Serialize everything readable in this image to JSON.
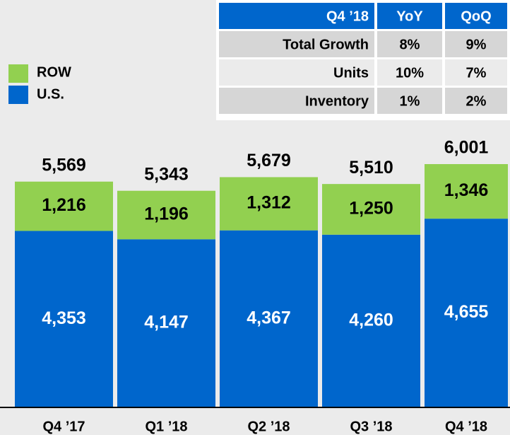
{
  "chart_data": {
    "type": "stacked_bar",
    "categories": [
      "Q4 ’17",
      "Q1 ’18",
      "Q2 ’18",
      "Q3 ’18",
      "Q4 ’18"
    ],
    "series": [
      {
        "name": "U.S.",
        "color": "#0066cc",
        "values": [
          4353,
          4147,
          4367,
          4260,
          4655
        ],
        "value_labels": [
          "4,353",
          "4,147",
          "4,367",
          "4,260",
          "4,655"
        ]
      },
      {
        "name": "ROW",
        "color": "#92d050",
        "values": [
          1216,
          1196,
          1312,
          1250,
          1346
        ],
        "value_labels": [
          "1,216",
          "1,196",
          "1,312",
          "1,250",
          "1,346"
        ]
      }
    ],
    "totals": [
      5569,
      5343,
      5679,
      5510,
      6001
    ],
    "total_labels": [
      "5,569",
      "5,343",
      "5,679",
      "5,510",
      "6,001"
    ],
    "table": {
      "header": [
        "Q4 ’18",
        "YoY",
        "QoQ"
      ],
      "rows": [
        [
          "Total Growth",
          "8%",
          "9%"
        ],
        [
          "Units",
          "10%",
          "7%"
        ],
        [
          "Inventory",
          "1%",
          "2%"
        ]
      ]
    }
  }
}
